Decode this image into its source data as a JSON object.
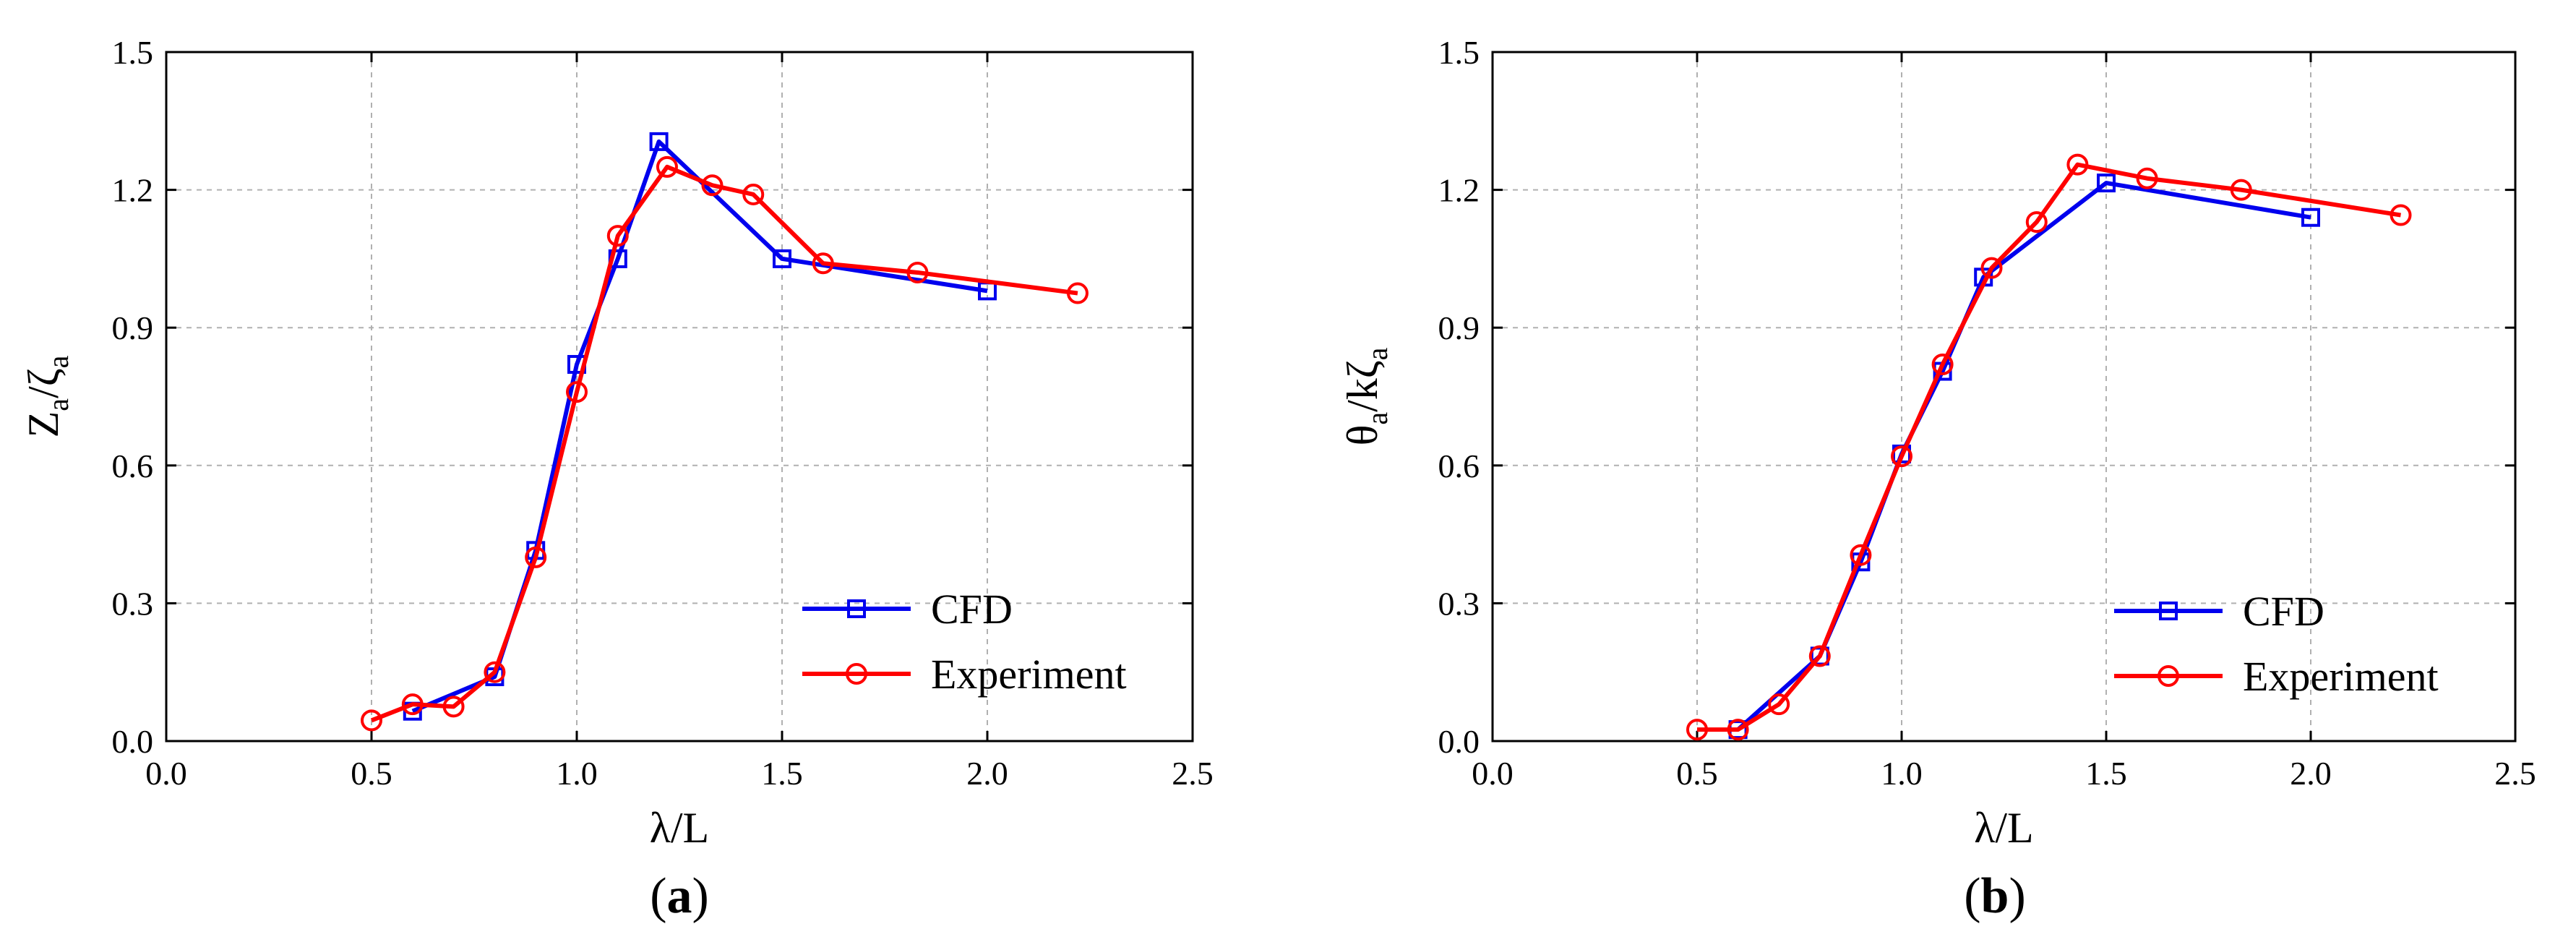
{
  "chart_data": [
    {
      "type": "line",
      "panel_label": "a",
      "xlabel": "λ/L",
      "ylabel": {
        "main": "Z",
        "sub1": "a",
        "mid": "/ζ",
        "sub2": "a"
      },
      "xlim": [
        0.0,
        2.5
      ],
      "ylim": [
        0.0,
        1.5
      ],
      "xticks": [
        "0.0",
        "0.5",
        "1.0",
        "1.5",
        "2.0",
        "2.5"
      ],
      "yticks": [
        "0.0",
        "0.3",
        "0.6",
        "0.9",
        "1.2",
        "1.5"
      ],
      "grid": true,
      "legend_position": "bottom-right",
      "series": [
        {
          "name": "CFD",
          "color": "#0000ee",
          "marker": "square",
          "x": [
            0.6,
            0.8,
            0.9,
            1.0,
            1.1,
            1.2,
            1.5,
            2.0
          ],
          "y": [
            0.065,
            0.14,
            0.415,
            0.82,
            1.05,
            1.305,
            1.05,
            0.98
          ]
        },
        {
          "name": "Experiment",
          "color": "#ff0000",
          "marker": "circle",
          "x": [
            0.5,
            0.6,
            0.7,
            0.8,
            0.9,
            1.0,
            1.1,
            1.22,
            1.33,
            1.43,
            1.6,
            1.83,
            2.22
          ],
          "y": [
            0.045,
            0.08,
            0.075,
            0.15,
            0.4,
            0.76,
            1.1,
            1.25,
            1.21,
            1.19,
            1.04,
            1.02,
            0.975
          ]
        }
      ]
    },
    {
      "type": "line",
      "panel_label": "b",
      "xlabel": "λ/L",
      "ylabel": {
        "main": "θ",
        "sub1": "a",
        "mid": "/kζ",
        "sub2": "a"
      },
      "xlim": [
        0.0,
        2.5
      ],
      "ylim": [
        0.0,
        1.5
      ],
      "xticks": [
        "0.0",
        "0.5",
        "1.0",
        "1.5",
        "2.0",
        "2.5"
      ],
      "yticks": [
        "0.0",
        "0.3",
        "0.6",
        "0.9",
        "1.2",
        "1.5"
      ],
      "grid": true,
      "legend_position": "bottom-right",
      "series": [
        {
          "name": "CFD",
          "color": "#0000ee",
          "marker": "square",
          "x": [
            0.6,
            0.8,
            0.9,
            1.0,
            1.1,
            1.2,
            1.5,
            2.0
          ],
          "y": [
            0.025,
            0.185,
            0.39,
            0.625,
            0.805,
            1.01,
            1.215,
            1.14
          ]
        },
        {
          "name": "Experiment",
          "color": "#ff0000",
          "marker": "circle",
          "x": [
            0.5,
            0.6,
            0.7,
            0.8,
            0.9,
            1.0,
            1.1,
            1.22,
            1.33,
            1.43,
            1.6,
            1.83,
            2.22
          ],
          "y": [
            0.025,
            0.025,
            0.08,
            0.185,
            0.405,
            0.62,
            0.82,
            1.03,
            1.13,
            1.255,
            1.225,
            1.2,
            1.145
          ]
        }
      ]
    }
  ]
}
